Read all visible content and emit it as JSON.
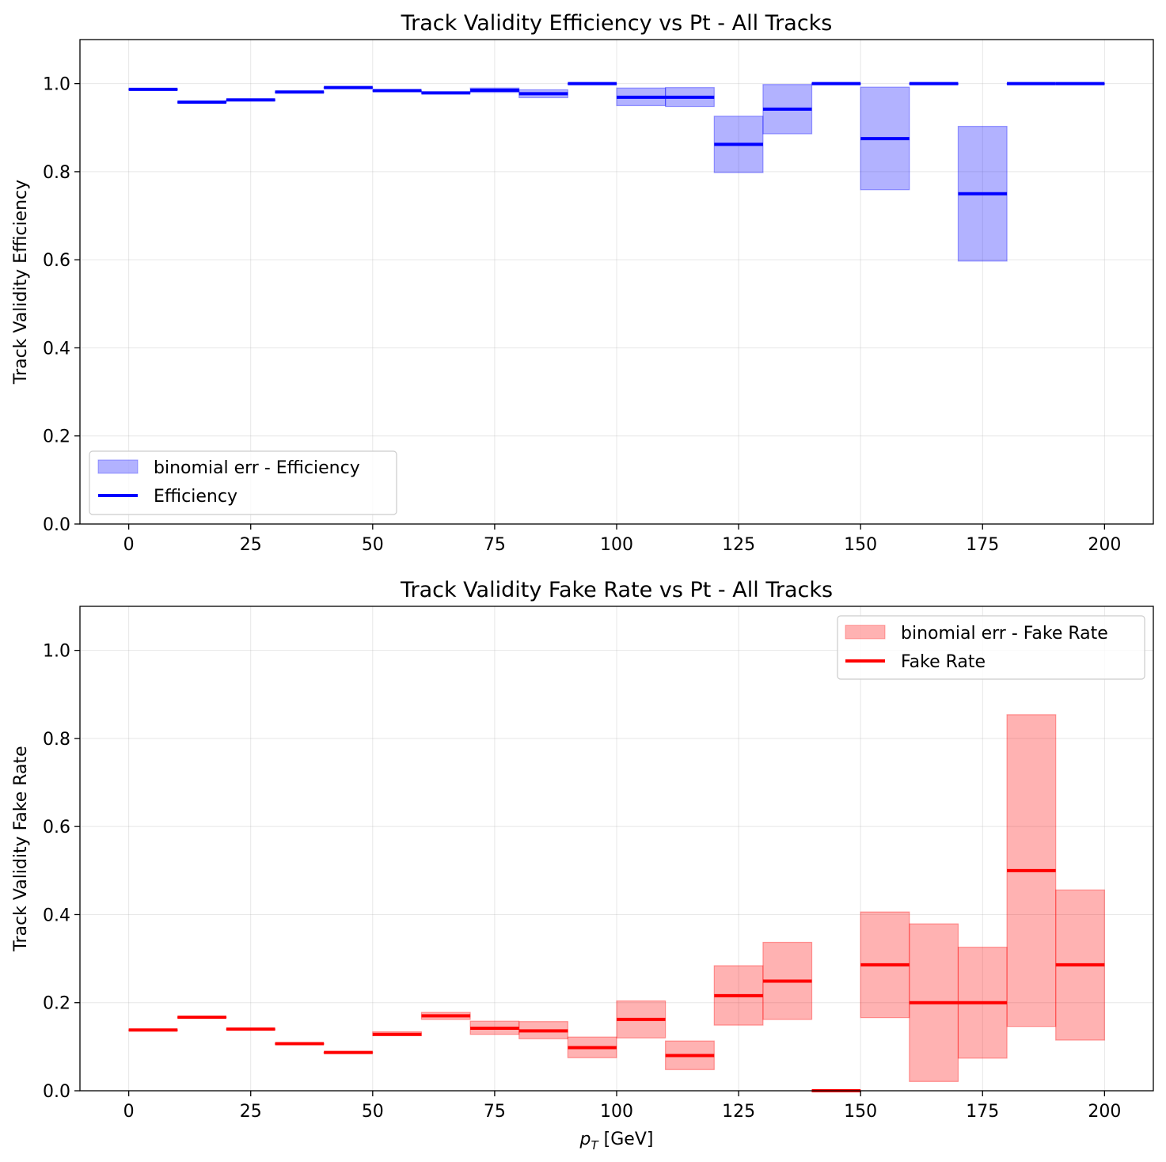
{
  "chart_data": [
    {
      "type": "step",
      "title": "Track Validity Efficiency vs Pt - All Tracks",
      "xlabel": "",
      "ylabel": "Track Validity Efficiency",
      "xlim": [
        -10,
        210
      ],
      "ylim": [
        0.0,
        1.1
      ],
      "xticks": [
        0,
        25,
        50,
        75,
        100,
        125,
        150,
        175,
        200
      ],
      "yticks": [
        0.0,
        0.2,
        0.4,
        0.6,
        0.8,
        1.0
      ],
      "xtick_labels": [
        "0",
        "25",
        "50",
        "75",
        "100",
        "125",
        "150",
        "175",
        "200"
      ],
      "ytick_labels": [
        "0.0",
        "0.2",
        "0.4",
        "0.6",
        "0.8",
        "1.0"
      ],
      "grid": true,
      "legend_position": "lower-left",
      "colors": {
        "line": "#0000ff",
        "band": "#0000ff"
      },
      "bins": [
        {
          "x0": 0,
          "x1": 10,
          "value": 0.987,
          "low": 0.987,
          "high": 0.987
        },
        {
          "x0": 10,
          "x1": 20,
          "value": 0.958,
          "low": 0.958,
          "high": 0.958
        },
        {
          "x0": 20,
          "x1": 30,
          "value": 0.963,
          "low": 0.963,
          "high": 0.963
        },
        {
          "x0": 30,
          "x1": 40,
          "value": 0.981,
          "low": 0.981,
          "high": 0.981
        },
        {
          "x0": 40,
          "x1": 50,
          "value": 0.991,
          "low": 0.991,
          "high": 0.991
        },
        {
          "x0": 50,
          "x1": 60,
          "value": 0.984,
          "low": 0.984,
          "high": 0.984
        },
        {
          "x0": 60,
          "x1": 70,
          "value": 0.979,
          "low": 0.979,
          "high": 0.979
        },
        {
          "x0": 70,
          "x1": 80,
          "value": 0.985,
          "low": 0.98,
          "high": 0.99
        },
        {
          "x0": 80,
          "x1": 90,
          "value": 0.977,
          "low": 0.968,
          "high": 0.986
        },
        {
          "x0": 90,
          "x1": 100,
          "value": 1.0,
          "low": 1.0,
          "high": 1.0
        },
        {
          "x0": 100,
          "x1": 110,
          "value": 0.969,
          "low": 0.95,
          "high": 0.99
        },
        {
          "x0": 110,
          "x1": 120,
          "value": 0.969,
          "low": 0.948,
          "high": 0.991
        },
        {
          "x0": 120,
          "x1": 130,
          "value": 0.862,
          "low": 0.798,
          "high": 0.926
        },
        {
          "x0": 130,
          "x1": 140,
          "value": 0.942,
          "low": 0.886,
          "high": 0.998
        },
        {
          "x0": 140,
          "x1": 150,
          "value": 1.0,
          "low": 1.0,
          "high": 1.0
        },
        {
          "x0": 150,
          "x1": 160,
          "value": 0.875,
          "low": 0.759,
          "high": 0.992
        },
        {
          "x0": 160,
          "x1": 170,
          "value": 1.0,
          "low": 1.0,
          "high": 1.0
        },
        {
          "x0": 170,
          "x1": 180,
          "value": 0.75,
          "low": 0.597,
          "high": 0.903
        },
        {
          "x0": 180,
          "x1": 190,
          "value": 1.0,
          "low": 1.0,
          "high": 1.0
        },
        {
          "x0": 190,
          "x1": 200,
          "value": 1.0,
          "low": 1.0,
          "high": 1.0
        }
      ],
      "legend": [
        "binomial err - Efficiency",
        "Efficiency"
      ]
    },
    {
      "type": "step",
      "title": "Track Validity Fake Rate vs Pt - All Tracks",
      "xlabel": "p_T [GeV]",
      "ylabel": "Track Validity Fake Rate",
      "xlim": [
        -10,
        210
      ],
      "ylim": [
        0.0,
        1.1
      ],
      "xticks": [
        0,
        25,
        50,
        75,
        100,
        125,
        150,
        175,
        200
      ],
      "yticks": [
        0.0,
        0.2,
        0.4,
        0.6,
        0.8,
        1.0
      ],
      "xtick_labels": [
        "0",
        "25",
        "50",
        "75",
        "100",
        "125",
        "150",
        "175",
        "200"
      ],
      "ytick_labels": [
        "0.0",
        "0.2",
        "0.4",
        "0.6",
        "0.8",
        "1.0"
      ],
      "grid": true,
      "legend_position": "upper-right",
      "colors": {
        "line": "#ff0000",
        "band": "#ff0000"
      },
      "bins": [
        {
          "x0": 0,
          "x1": 10,
          "value": 0.138,
          "low": 0.138,
          "high": 0.138
        },
        {
          "x0": 10,
          "x1": 20,
          "value": 0.167,
          "low": 0.167,
          "high": 0.167
        },
        {
          "x0": 20,
          "x1": 30,
          "value": 0.14,
          "low": 0.14,
          "high": 0.14
        },
        {
          "x0": 30,
          "x1": 40,
          "value": 0.107,
          "low": 0.107,
          "high": 0.107
        },
        {
          "x0": 40,
          "x1": 50,
          "value": 0.087,
          "low": 0.087,
          "high": 0.087
        },
        {
          "x0": 50,
          "x1": 60,
          "value": 0.128,
          "low": 0.125,
          "high": 0.134
        },
        {
          "x0": 60,
          "x1": 70,
          "value": 0.17,
          "low": 0.162,
          "high": 0.178
        },
        {
          "x0": 70,
          "x1": 80,
          "value": 0.142,
          "low": 0.128,
          "high": 0.158
        },
        {
          "x0": 80,
          "x1": 90,
          "value": 0.136,
          "low": 0.118,
          "high": 0.157
        },
        {
          "x0": 90,
          "x1": 100,
          "value": 0.098,
          "low": 0.075,
          "high": 0.122
        },
        {
          "x0": 100,
          "x1": 110,
          "value": 0.162,
          "low": 0.12,
          "high": 0.204
        },
        {
          "x0": 110,
          "x1": 120,
          "value": 0.08,
          "low": 0.048,
          "high": 0.113
        },
        {
          "x0": 120,
          "x1": 130,
          "value": 0.216,
          "low": 0.149,
          "high": 0.284
        },
        {
          "x0": 130,
          "x1": 140,
          "value": 0.249,
          "low": 0.162,
          "high": 0.337
        },
        {
          "x0": 140,
          "x1": 150,
          "value": 0.0,
          "low": 0.0,
          "high": 0.0
        },
        {
          "x0": 150,
          "x1": 160,
          "value": 0.286,
          "low": 0.166,
          "high": 0.406
        },
        {
          "x0": 160,
          "x1": 170,
          "value": 0.2,
          "low": 0.021,
          "high": 0.379
        },
        {
          "x0": 170,
          "x1": 180,
          "value": 0.2,
          "low": 0.074,
          "high": 0.326
        },
        {
          "x0": 180,
          "x1": 190,
          "value": 0.5,
          "low": 0.146,
          "high": 0.854
        },
        {
          "x0": 190,
          "x1": 200,
          "value": 0.286,
          "low": 0.115,
          "high": 0.456
        }
      ],
      "legend": [
        "binomial err - Fake Rate",
        "Fake Rate"
      ]
    }
  ]
}
